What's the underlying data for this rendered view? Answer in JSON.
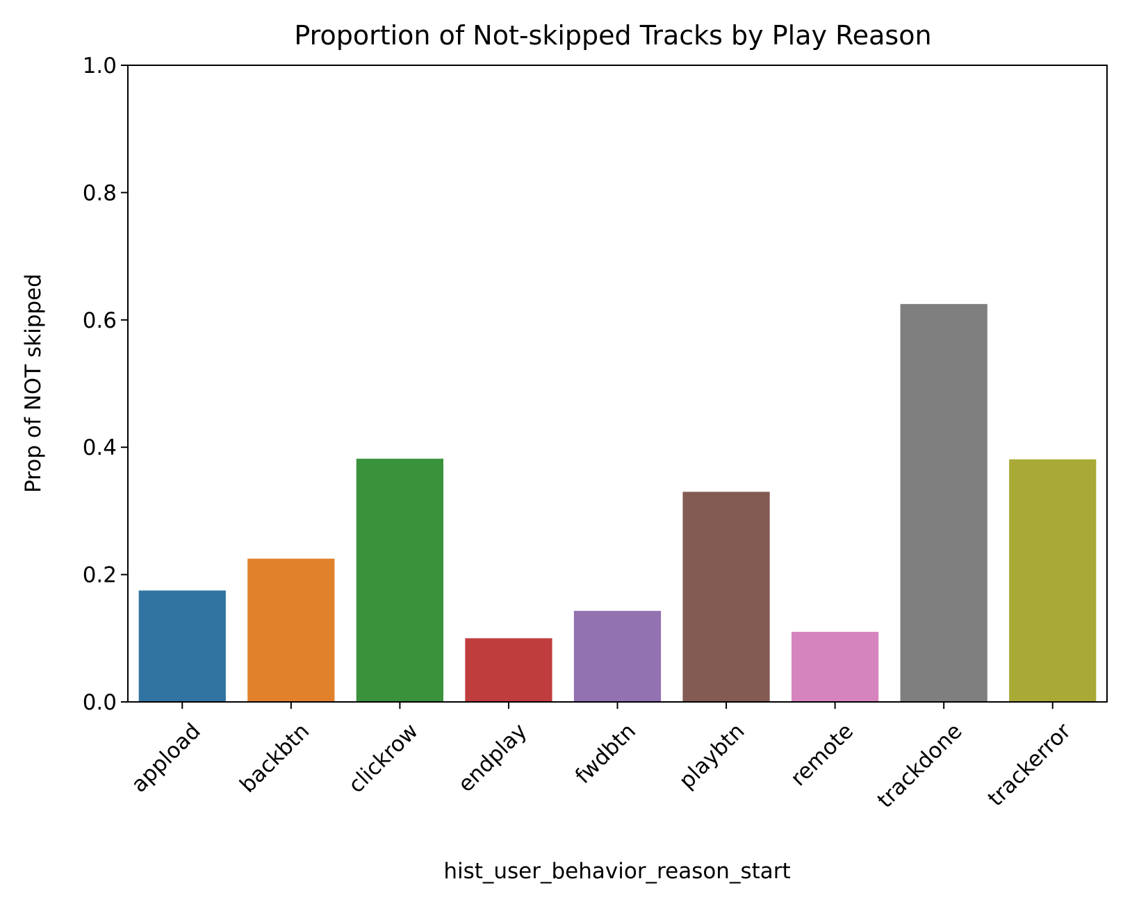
{
  "chart_data": {
    "type": "bar",
    "title": "Proportion of Not-skipped Tracks by Play Reason",
    "xlabel": "hist_user_behavior_reason_start",
    "ylabel": "Prop of NOT skipped",
    "categories": [
      "appload",
      "backbtn",
      "clickrow",
      "endplay",
      "fwdbtn",
      "playbtn",
      "remote",
      "trackdone",
      "trackerror"
    ],
    "values": [
      0.175,
      0.225,
      0.382,
      0.1,
      0.143,
      0.33,
      0.11,
      0.625,
      0.381
    ],
    "colors": [
      "#3274a1",
      "#e1812c",
      "#3a923a",
      "#c03d3e",
      "#9372b2",
      "#845b53",
      "#d684bd",
      "#7f7f7f",
      "#a9aa35"
    ],
    "ylim": [
      0,
      1.0
    ],
    "yticks": [
      0.0,
      0.2,
      0.4,
      0.6,
      0.8,
      1.0
    ],
    "ytick_labels": [
      "0.0",
      "0.2",
      "0.4",
      "0.6",
      "0.8",
      "1.0"
    ],
    "grid": false,
    "legend": "none"
  }
}
